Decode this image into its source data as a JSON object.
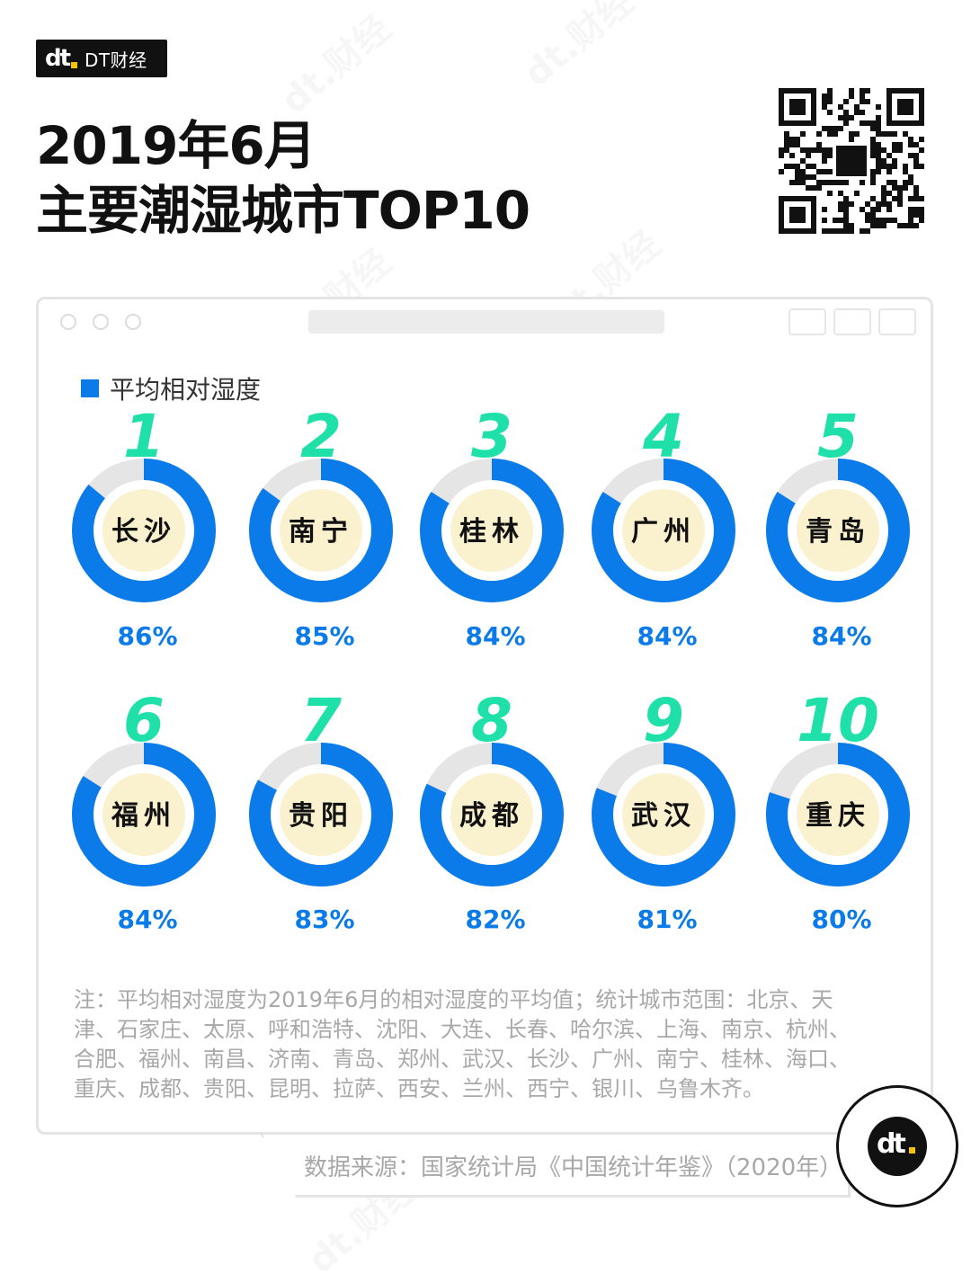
{
  "brand": {
    "logo_text": "dt",
    "name": "DT财经"
  },
  "title": {
    "line1": "2019年6月",
    "line2": "主要潮湿城市TOP10"
  },
  "legend": {
    "label": "平均相对湿度",
    "color": "#0a7be9"
  },
  "colors": {
    "ring_fill": "#0a7be9",
    "ring_track": "#e5e5e5",
    "center_fill": "#faf1cf",
    "rank_color": "#1fe0a8",
    "value_color": "#0a7be9"
  },
  "chart_data": {
    "type": "donut",
    "series_name": "平均相对湿度",
    "unit": "%",
    "ranks": [
      "1",
      "2",
      "3",
      "4",
      "5",
      "6",
      "7",
      "8",
      "9",
      "10"
    ],
    "categories": [
      "长沙",
      "南宁",
      "桂林",
      "广州",
      "青岛",
      "福州",
      "贵阳",
      "成都",
      "武汉",
      "重庆"
    ],
    "values": [
      86,
      85,
      84,
      84,
      84,
      84,
      83,
      82,
      81,
      80
    ],
    "value_labels": [
      "86%",
      "85%",
      "84%",
      "84%",
      "84%",
      "84%",
      "83%",
      "82%",
      "81%",
      "80%"
    ]
  },
  "note": "注：平均相对湿度为2019年6月的相对湿度的平均值；统计城市范围：北京、天津、石家庄、太原、呼和浩特、沈阳、大连、长春、哈尔滨、上海、南京、杭州、合肥、福州、南昌、济南、青岛、郑州、武汉、长沙、广州、南宁、桂林、海口、重庆、成都、贵阳、昆明、拉萨、西安、兰州、西宁、银川、乌鲁木齐。",
  "source": "数据来源：国家统计局《中国统计年鉴》（2020年）",
  "watermark": "dt.财经"
}
